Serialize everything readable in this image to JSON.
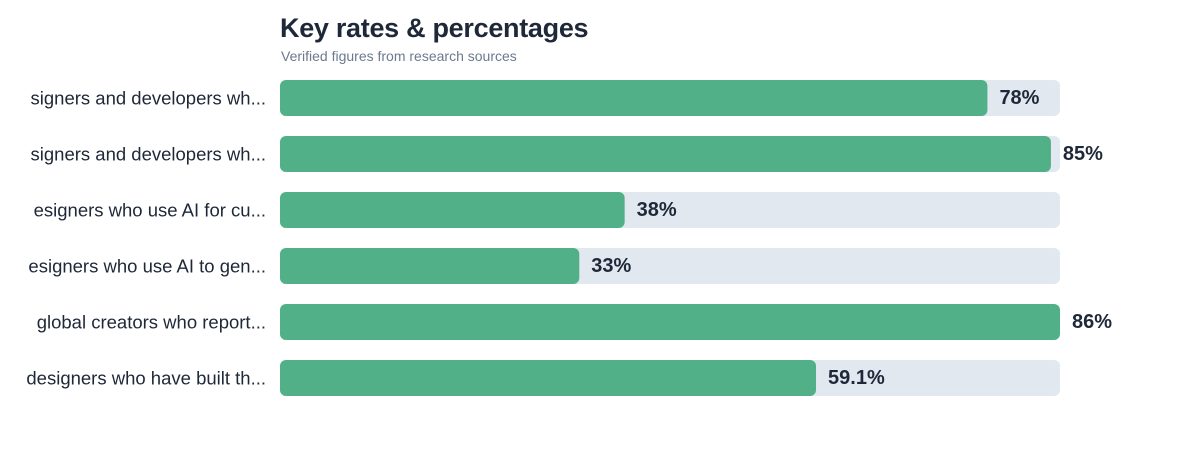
{
  "chart_data": {
    "type": "bar",
    "orientation": "horizontal",
    "title": "Key rates & percentages",
    "subtitle": "Verified figures from research sources",
    "xlim": [
      0,
      86
    ],
    "grid": false,
    "legend": "none",
    "categories": [
      "...signers and developers wh...",
      "...signers and developers wh...",
      "...esigners who use AI for cu...",
      "...esigners who use AI to gen...",
      "...global creators who report...",
      "...designers who have built th..."
    ],
    "category_labels": [
      "signers and developers wh...",
      "signers and developers wh...",
      "esigners who use AI for cu...",
      "esigners who use AI to gen...",
      "global creators who report...",
      "designers who have built th..."
    ],
    "values": [
      78,
      85,
      38,
      33,
      86,
      59.1
    ],
    "value_labels": [
      "78%",
      "85%",
      "38%",
      "33%",
      "86%",
      "59.1%"
    ],
    "colors": {
      "bar": "#52b088",
      "track": "#e2e8f0",
      "label": "#1e2838",
      "title": "#1e2838",
      "subtitle": "#6b7a8f"
    }
  }
}
